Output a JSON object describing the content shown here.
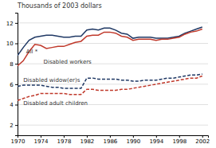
{
  "chart_data": {
    "type": "line",
    "title": "Thousands of 2003 dollars",
    "x": [
      1970,
      1971,
      1972,
      1973,
      1974,
      1975,
      1976,
      1977,
      1978,
      1979,
      1980,
      1981,
      1982,
      1983,
      1984,
      1985,
      1986,
      1987,
      1988,
      1989,
      1990,
      1991,
      1992,
      1993,
      1994,
      1995,
      1996,
      1997,
      1998,
      1999,
      2000,
      2001,
      2002
    ],
    "series": [
      {
        "color": "#1F3864",
        "line_style": "solid",
        "values": [
          8.8,
          9.6,
          10.3,
          10.6,
          10.7,
          10.8,
          10.8,
          10.7,
          10.6,
          10.6,
          10.7,
          10.7,
          11.3,
          11.4,
          11.3,
          11.5,
          11.5,
          11.3,
          11.0,
          10.9,
          10.5,
          10.6,
          10.6,
          10.6,
          10.5,
          10.5,
          10.5,
          10.6,
          10.7,
          11.0,
          11.2,
          11.4,
          11.6
        ]
      },
      {
        "color": "#C0392B",
        "line_style": "solid",
        "values": [
          7.8,
          8.3,
          9.2,
          9.9,
          9.8,
          9.5,
          9.6,
          9.7,
          9.7,
          9.9,
          10.1,
          10.2,
          10.7,
          10.8,
          10.8,
          11.1,
          11.1,
          11.0,
          10.7,
          10.6,
          10.3,
          10.4,
          10.4,
          10.4,
          10.3,
          10.4,
          10.4,
          10.5,
          10.6,
          10.9,
          11.1,
          11.2,
          11.4
        ]
      },
      {
        "color": "#1F3864",
        "line_style": "dashed",
        "values": [
          5.8,
          5.9,
          5.9,
          5.9,
          5.9,
          5.8,
          5.7,
          5.7,
          5.6,
          5.6,
          5.6,
          5.6,
          6.6,
          6.6,
          6.5,
          6.5,
          6.5,
          6.5,
          6.4,
          6.4,
          6.3,
          6.3,
          6.4,
          6.4,
          6.4,
          6.5,
          6.6,
          6.6,
          6.7,
          6.8,
          6.9,
          6.9,
          7.0
        ]
      },
      {
        "color": "#C0392B",
        "line_style": "dashed",
        "values": [
          4.4,
          4.6,
          4.8,
          4.9,
          5.1,
          5.1,
          5.1,
          5.1,
          5.1,
          5.0,
          5.0,
          5.0,
          5.5,
          5.5,
          5.4,
          5.4,
          5.4,
          5.4,
          5.5,
          5.5,
          5.6,
          5.7,
          5.8,
          5.9,
          6.0,
          6.1,
          6.2,
          6.3,
          6.4,
          6.5,
          6.6,
          6.6,
          6.8
        ]
      }
    ],
    "annotations": [
      {
        "text": "All *",
        "x": 1971.5,
        "y": 9.05
      },
      {
        "text": "Disabled workers",
        "x": 1974.5,
        "y": 8.05
      },
      {
        "text": "Disabled widow(er)s",
        "x": 1971.0,
        "y": 6.25
      },
      {
        "text": "Disabled adult children",
        "x": 1971.0,
        "y": 4.0
      }
    ],
    "xlim": [
      1970,
      2003
    ],
    "ylim": [
      1,
      13
    ],
    "xticks": [
      1970,
      1974,
      1978,
      1982,
      1986,
      1990,
      1994,
      1998,
      2002
    ],
    "yticks": [
      2,
      4,
      6,
      8,
      10,
      12
    ],
    "grid": true
  }
}
